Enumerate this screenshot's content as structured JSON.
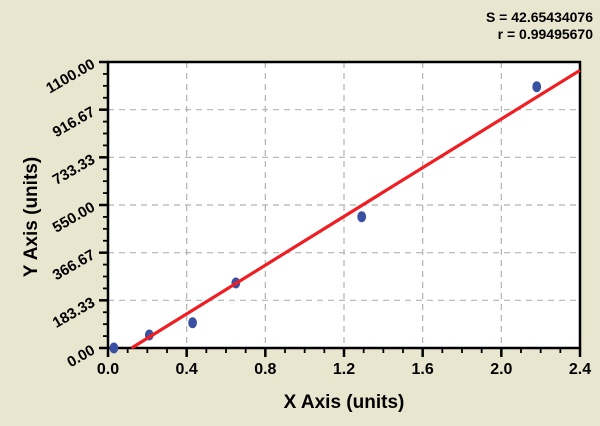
{
  "annotations": {
    "s_value": "S = 42.65434076",
    "r_value": "r = 0.99495670"
  },
  "chart_data": {
    "type": "scatter",
    "title": "",
    "xlabel": "X Axis (units)",
    "ylabel": "Y Axis (units)",
    "xlim": [
      0,
      2.4
    ],
    "ylim": [
      0,
      1100
    ],
    "grid": "dashed gridlines at major ticks",
    "legend_position": "none",
    "x_major_ticks": [
      0.0,
      0.4,
      0.8,
      1.2,
      1.6,
      2.0,
      2.4
    ],
    "x_tick_labels": [
      "0.0",
      "0.4",
      "0.8",
      "1.2",
      "1.6",
      "2.0",
      "2.4"
    ],
    "x_minor_divisions": 4,
    "y_major_ticks": [
      0,
      183.33,
      366.67,
      550,
      733.33,
      916.67,
      1100
    ],
    "y_tick_labels": [
      "0.00",
      "183.33",
      "366.67",
      "550.00",
      "733.33",
      "916.67",
      "1100.00"
    ],
    "y_minor_divisions": 4,
    "series": [
      {
        "name": "data-points",
        "type": "scatter",
        "points": [
          {
            "x": 0.03,
            "y": 0
          },
          {
            "x": 0.21,
            "y": 50
          },
          {
            "x": 0.43,
            "y": 97
          },
          {
            "x": 0.65,
            "y": 250
          },
          {
            "x": 1.29,
            "y": 505
          },
          {
            "x": 2.18,
            "y": 1005
          }
        ]
      },
      {
        "name": "regression-fit-line",
        "type": "line",
        "segment": {
          "x1": 0.12,
          "y1": 0,
          "x2": 2.4,
          "y2": 1068
        }
      }
    ],
    "stats_text": [
      "S = 42.65434076",
      "r = 0.99495670"
    ],
    "colors": {
      "background": "#e9e6d0",
      "plot_background": "#ffffff",
      "frame": "#000000",
      "grid": "#b2b2ae",
      "point_fill": "#3a51a3",
      "fit_line": "#f01e23",
      "text": "#000000"
    }
  }
}
